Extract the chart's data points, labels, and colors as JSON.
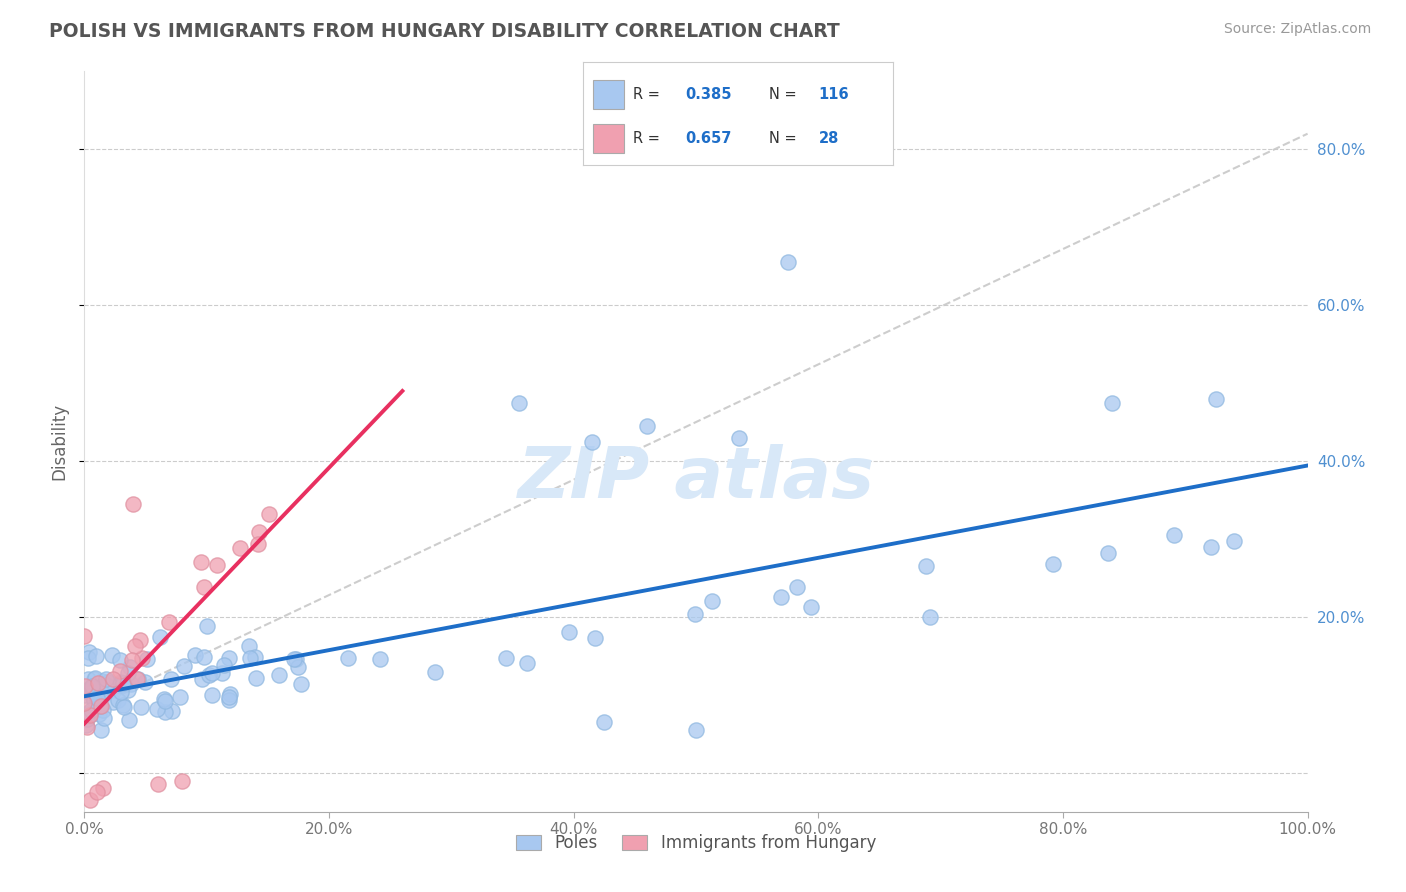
{
  "title": "POLISH VS IMMIGRANTS FROM HUNGARY DISABILITY CORRELATION CHART",
  "source": "Source: ZipAtlas.com",
  "ylabel": "Disability",
  "xlabel": "",
  "xlim": [
    0.0,
    1.0
  ],
  "ylim": [
    -0.05,
    0.9
  ],
  "xticklabels": [
    "0.0%",
    "20.0%",
    "40.0%",
    "60.0%",
    "80.0%",
    "100.0%"
  ],
  "xticks": [
    0.0,
    0.2,
    0.4,
    0.6,
    0.8,
    1.0
  ],
  "yticks_right": [
    0.0,
    0.2,
    0.4,
    0.6,
    0.8
  ],
  "yticklabels_right": [
    "",
    "20.0%",
    "40.0%",
    "60.0%",
    "80.0%"
  ],
  "legend_labels": [
    "Poles",
    "Immigrants from Hungary"
  ],
  "R_blue": "0.385",
  "N_blue": "116",
  "R_pink": "0.657",
  "N_pink": "28",
  "blue_color": "#A8C8F0",
  "pink_color": "#F0A0B0",
  "blue_line_color": "#1E6EC8",
  "pink_line_color": "#E83060",
  "trendline_color": "#C8C8C8",
  "title_color": "#555555",
  "source_color": "#999999",
  "background_color": "#FFFFFF",
  "grid_color": "#CCCCCC",
  "stat_text_color": "#1E6EC8",
  "watermark_color": "#D8E8F8"
}
